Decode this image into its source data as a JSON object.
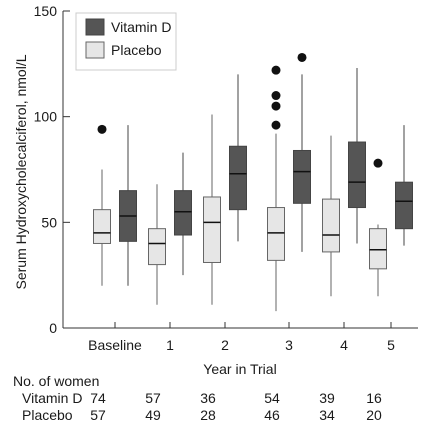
{
  "chart_data": {
    "type": "box",
    "ylabel": "Serum Hydroxycholecalciferol, nmol/L",
    "xlabel": "Year in Trial",
    "ylim": [
      0,
      150
    ],
    "yticks": [
      0,
      50,
      100,
      150
    ],
    "categories": [
      "Baseline",
      "1",
      "2",
      "3",
      "4",
      "5"
    ],
    "legend": {
      "position": "top-left"
    },
    "series": [
      {
        "name": "Vitamin D",
        "color": "#555555",
        "boxes": [
          {
            "whisker_low": 20,
            "q1": 41,
            "median": 53,
            "q3": 65,
            "whisker_high": 96,
            "outliers": []
          },
          {
            "whisker_low": 25,
            "q1": 44,
            "median": 55,
            "q3": 65,
            "whisker_high": 83,
            "outliers": []
          },
          {
            "whisker_low": 41,
            "q1": 56,
            "median": 73,
            "q3": 86,
            "whisker_high": 120,
            "outliers": []
          },
          {
            "whisker_low": 36,
            "q1": 59,
            "median": 74,
            "q3": 84,
            "whisker_high": 120,
            "outliers": [
              128
            ]
          },
          {
            "whisker_low": 40,
            "q1": 57,
            "median": 69,
            "q3": 88,
            "whisker_high": 123,
            "outliers": []
          },
          {
            "whisker_low": 39,
            "q1": 47,
            "median": 60,
            "q3": 69,
            "whisker_high": 96,
            "outliers": []
          }
        ]
      },
      {
        "name": "Placebo",
        "color": "#e6e6e6",
        "boxes": [
          {
            "whisker_low": 20,
            "q1": 40,
            "median": 45,
            "q3": 56,
            "whisker_high": 75,
            "outliers": [
              94
            ]
          },
          {
            "whisker_low": 11,
            "q1": 30,
            "median": 40,
            "q3": 47,
            "whisker_high": 68,
            "outliers": []
          },
          {
            "whisker_low": 11,
            "q1": 31,
            "median": 50,
            "q3": 62,
            "whisker_high": 101,
            "outliers": []
          },
          {
            "whisker_low": 8,
            "q1": 32,
            "median": 45,
            "q3": 57,
            "whisker_high": 92,
            "outliers": [
              96,
              105,
              110,
              122
            ]
          },
          {
            "whisker_low": 15,
            "q1": 36,
            "median": 44,
            "q3": 61,
            "whisker_high": 91,
            "outliers": []
          },
          {
            "whisker_low": 15,
            "q1": 28,
            "median": 37,
            "q3": 47,
            "whisker_high": 49,
            "outliers": [
              78
            ]
          }
        ]
      }
    ],
    "counts_table": {
      "title": "No. of women",
      "rows": [
        {
          "label": "Vitamin D",
          "values": [
            "74",
            "57",
            "36",
            "54",
            "39",
            "16"
          ]
        },
        {
          "label": "Placebo",
          "values": [
            "57",
            "49",
            "28",
            "46",
            "34",
            "20"
          ]
        }
      ]
    }
  }
}
